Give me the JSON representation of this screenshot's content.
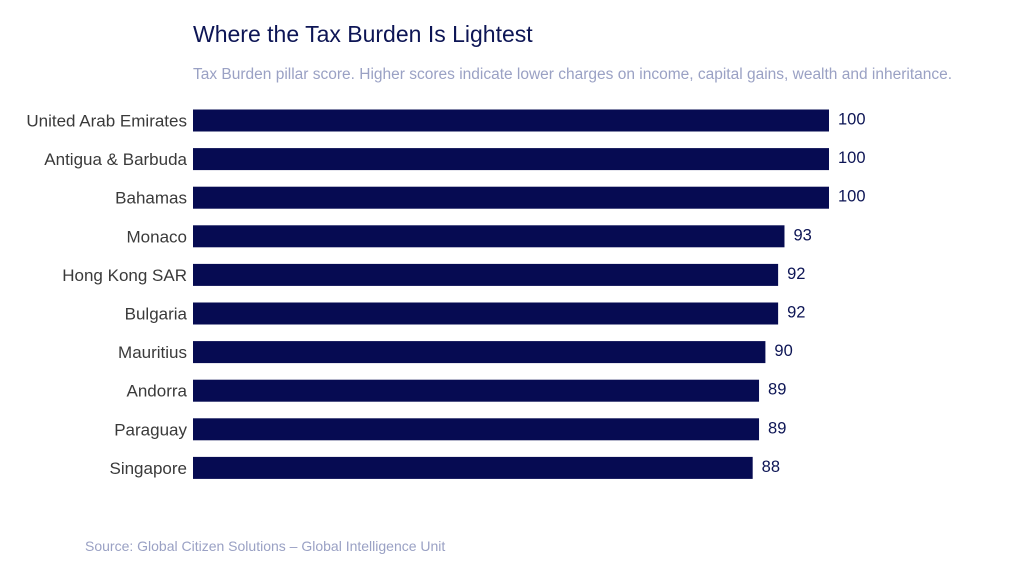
{
  "chart_data": {
    "type": "bar",
    "orientation": "horizontal",
    "title": "Where the Tax Burden Is Lightest",
    "subtitle": "Tax Burden pillar score. Higher scores indicate lower charges on income, capital gains, wealth and inheritance.",
    "source": "Source: Global Citizen Solutions – Global Intelligence Unit",
    "categories": [
      "United Arab Emirates",
      "Antigua & Barbuda",
      "Bahamas",
      "Monaco",
      "Hong Kong SAR",
      "Bulgaria",
      "Mauritius",
      "Andorra",
      "Paraguay",
      "Singapore"
    ],
    "values": [
      100,
      100,
      100,
      93,
      92,
      92,
      90,
      89,
      89,
      88
    ],
    "xlim": [
      0,
      100
    ],
    "grid": false,
    "data_labels": true,
    "bar_color": "#060b52"
  }
}
